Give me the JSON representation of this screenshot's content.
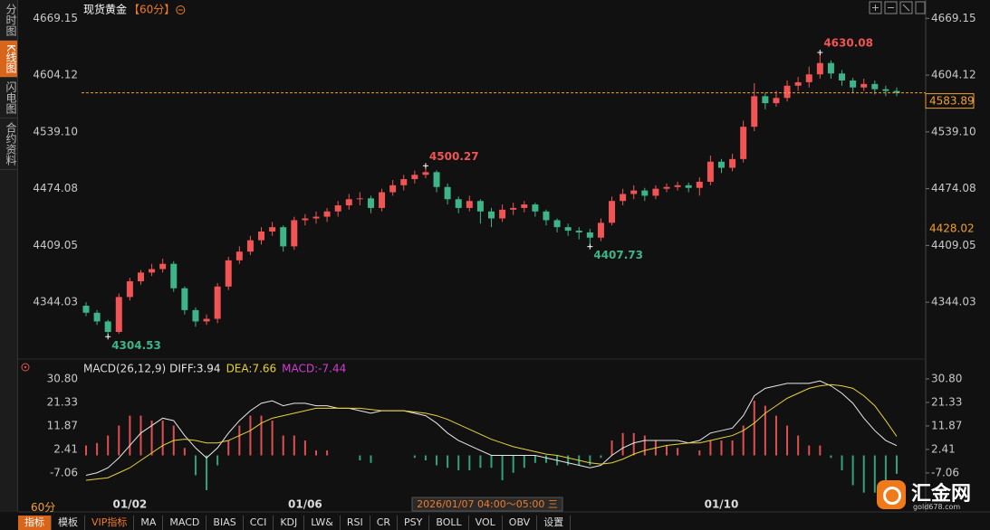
{
  "chart_data": [
    {
      "type": "candlestick",
      "title": "现货黄金",
      "period": "【60分】",
      "categories": [
        null,
        null,
        null,
        null,
        "01/02",
        null,
        null,
        null,
        null,
        null,
        null,
        null,
        null,
        null,
        null,
        null,
        null,
        null,
        null,
        null,
        "01/06",
        null,
        null,
        null,
        null,
        null,
        null,
        null,
        null,
        null,
        null,
        null,
        null,
        null,
        null,
        null,
        null,
        null,
        null,
        null,
        null,
        null,
        null,
        null,
        null,
        null,
        null,
        null,
        null,
        null,
        null,
        null,
        null,
        null,
        null,
        null,
        null,
        null,
        "01/10",
        null,
        null,
        null,
        null,
        null,
        null,
        null,
        null,
        null,
        null,
        null,
        null,
        null,
        null,
        null,
        null
      ],
      "candles": [
        [
          4340,
          4344,
          4328,
          4332
        ],
        [
          4332,
          4335,
          4318,
          4322
        ],
        [
          4322,
          4324,
          4304.53,
          4310
        ],
        [
          4310,
          4354,
          4308,
          4350
        ],
        [
          4350,
          4372,
          4346,
          4368
        ],
        [
          4368,
          4381,
          4364,
          4378
        ],
        [
          4378,
          4388,
          4374,
          4382
        ],
        [
          4382,
          4394,
          4378,
          4388
        ],
        [
          4388,
          4391,
          4356,
          4360
        ],
        [
          4360,
          4362,
          4330,
          4335
        ],
        [
          4335,
          4338,
          4316,
          4322
        ],
        [
          4322,
          4330,
          4318,
          4325
        ],
        [
          4325,
          4366,
          4320,
          4362
        ],
        [
          4362,
          4396,
          4358,
          4392
        ],
        [
          4392,
          4408,
          4388,
          4402
        ],
        [
          4402,
          4420,
          4398,
          4415
        ],
        [
          4415,
          4430,
          4410,
          4425
        ],
        [
          4425,
          4436,
          4420,
          4430
        ],
        [
          4430,
          4432,
          4402,
          4408
        ],
        [
          4408,
          4442,
          4404,
          4438
        ],
        [
          4438,
          4445,
          4432,
          4440
        ],
        [
          4440,
          4448,
          4434,
          4442
        ],
        [
          4442,
          4452,
          4436,
          4448
        ],
        [
          4448,
          4460,
          4442,
          4455
        ],
        [
          4455,
          4468,
          4450,
          4462
        ],
        [
          4462,
          4470,
          4455,
          4463
        ],
        [
          4463,
          4466,
          4446,
          4452
        ],
        [
          4452,
          4474,
          4448,
          4470
        ],
        [
          4470,
          4484,
          4466,
          4478
        ],
        [
          4478,
          4490,
          4472,
          4485
        ],
        [
          4485,
          4495,
          4480,
          4490
        ],
        [
          4490,
          4500.27,
          4486,
          4493
        ],
        [
          4493,
          4495,
          4470,
          4476
        ],
        [
          4476,
          4480,
          4456,
          4462
        ],
        [
          4462,
          4465,
          4446,
          4452
        ],
        [
          4452,
          4466,
          4448,
          4460
        ],
        [
          4460,
          4462,
          4434,
          4448
        ],
        [
          4448,
          4452,
          4430,
          4440
        ],
        [
          4440,
          4456,
          4436,
          4450
        ],
        [
          4450,
          4458,
          4444,
          4452
        ],
        [
          4452,
          4460,
          4447,
          4456
        ],
        [
          4456,
          4458,
          4442,
          4448
        ],
        [
          4448,
          4450,
          4432,
          4438
        ],
        [
          4438,
          4440,
          4424,
          4430
        ],
        [
          4430,
          4434,
          4420,
          4426
        ],
        [
          4426,
          4430,
          4416,
          4424
        ],
        [
          4424,
          4428,
          4407.73,
          4418
        ],
        [
          4418,
          4440,
          4414,
          4435
        ],
        [
          4435,
          4465,
          4432,
          4460
        ],
        [
          4460,
          4474,
          4455,
          4468
        ],
        [
          4468,
          4478,
          4462,
          4472
        ],
        [
          4472,
          4475,
          4460,
          4466
        ],
        [
          4466,
          4478,
          4462,
          4474
        ],
        [
          4474,
          4480,
          4470,
          4476
        ],
        [
          4476,
          4482,
          4472,
          4478
        ],
        [
          4478,
          4481,
          4470,
          4475
        ],
        [
          4475,
          4487,
          4466,
          4482
        ],
        [
          4482,
          4512,
          4478,
          4505
        ],
        [
          4505,
          4508,
          4492,
          4498
        ],
        [
          4498,
          4514,
          4494,
          4508
        ],
        [
          4508,
          4552,
          4504,
          4545
        ],
        [
          4545,
          4595,
          4540,
          4580
        ],
        [
          4580,
          4584,
          4565,
          4572
        ],
        [
          4572,
          4586,
          4568,
          4578
        ],
        [
          4578,
          4598,
          4574,
          4592
        ],
        [
          4592,
          4602,
          4586,
          4596
        ],
        [
          4596,
          4614,
          4590,
          4605
        ],
        [
          4605,
          4630.08,
          4600,
          4618
        ],
        [
          4618,
          4621,
          4600,
          4606
        ],
        [
          4606,
          4610,
          4592,
          4598
        ],
        [
          4598,
          4601,
          4584,
          4590
        ],
        [
          4590,
          4600,
          4586,
          4594
        ],
        [
          4594,
          4598,
          4582,
          4588
        ],
        [
          4588,
          4592,
          4580,
          4586
        ],
        [
          4586,
          4590,
          4580,
          4583.89
        ]
      ],
      "up_color": "#f05454",
      "down_color": "#3eb489",
      "last_price_color": "#f0a030",
      "ylim": [
        4281,
        4685
      ],
      "yticks": [
        4669.15,
        4604.12,
        {
          "value": 4539.1,
          "label": "4539.10"
        },
        4474.08,
        4409.05,
        4344.03
      ],
      "grid": false,
      "marked": [
        {
          "index": 2,
          "at": "low"
        },
        {
          "index": 31,
          "at": "high"
        },
        {
          "index": 46,
          "at": "low"
        },
        {
          "index": 67,
          "at": "high"
        }
      ],
      "reference_level": 4428.02
    },
    {
      "type": "macd",
      "title": "MACD(26,12,9)",
      "ylim": [
        -16.2,
        37.7
      ],
      "yticks": [
        {
          "value": 30.8,
          "label": "30.80"
        },
        21.33,
        11.87,
        2.41,
        -7.06
      ],
      "series": [
        {
          "name": "DIFF:",
          "color": "#e8e8e8",
          "values": [
            -8,
            -7,
            -5,
            -1,
            4,
            9,
            12,
            15,
            14,
            8,
            3,
            -1,
            3,
            9,
            14,
            18,
            21,
            22,
            20,
            21,
            21,
            20,
            20,
            19,
            19,
            18,
            17,
            18,
            18,
            18,
            17,
            16,
            13,
            9,
            6,
            4,
            2,
            0,
            0,
            0,
            0,
            0,
            -1,
            -2,
            -3,
            -4,
            -5,
            -4,
            0,
            3,
            5,
            6,
            6,
            6,
            6,
            5,
            6,
            9,
            10,
            11,
            16,
            24,
            27,
            28,
            29,
            29,
            29,
            30,
            28,
            25,
            21,
            15,
            10,
            6,
            3.94
          ]
        },
        {
          "name": "DEA:",
          "color": "#e6d23c",
          "values": [
            -10,
            -9.5,
            -9,
            -7,
            -5,
            -2,
            1,
            4,
            6,
            6.5,
            6,
            5,
            5,
            6,
            8,
            10,
            13,
            15,
            16,
            17,
            18,
            19,
            19,
            19,
            19,
            19,
            18.5,
            18,
            18,
            18,
            17.5,
            17,
            16,
            14.5,
            12.5,
            10.5,
            8.5,
            6.5,
            5,
            3.5,
            2.5,
            1.5,
            0.5,
            0,
            -1,
            -2,
            -3,
            -3.5,
            -3,
            -1.5,
            0.5,
            2,
            3,
            4,
            4.5,
            5,
            5,
            6,
            7,
            8,
            10,
            13,
            17,
            20,
            23,
            25,
            27,
            28,
            28.5,
            28,
            27,
            24,
            20,
            14,
            7.66
          ]
        },
        {
          "name": "MACD:",
          "color": "#d23cd2",
          "kind": "histogram",
          "up_color": "#e05050",
          "down_color": "#2fa37a",
          "values": [
            4,
            5,
            8,
            12,
            16,
            16,
            14,
            14,
            12,
            3,
            -8,
            -14,
            -4,
            6,
            12,
            16,
            16,
            14,
            8,
            8,
            6,
            2,
            2,
            0,
            0,
            -2,
            -3,
            0,
            0,
            0,
            -1,
            -2,
            -4,
            -5,
            -6,
            -6,
            -5,
            -5,
            -10,
            -7,
            -5,
            -3,
            -3,
            -4,
            -4,
            -4,
            -4,
            -1,
            6,
            9,
            9,
            8,
            6,
            4,
            3,
            0,
            2,
            6,
            6,
            6,
            12,
            22,
            20,
            16,
            12,
            8,
            4,
            4,
            -1,
            -6,
            -12,
            -15,
            -15,
            -12,
            -7.44
          ]
        }
      ]
    }
  ],
  "ui": {
    "sidebar_tabs": [
      "分时图",
      "K线图",
      "闪电图",
      "合约资料"
    ],
    "sidebar_active": 1,
    "period": "60分",
    "crosshair_time": "2026/01/07 04:00～05:00 三",
    "toolbar": [
      "指标",
      "模板",
      "VIP指标",
      "MA",
      "MACD",
      "BIAS",
      "CCI",
      "KDJ",
      "LW&",
      "RSI",
      "CR",
      "PSY",
      "BOLL",
      "VOL",
      "OBV",
      "设置"
    ],
    "toolbar_active": 0,
    "toolbar_highlight": 2,
    "logo": {
      "name": "汇金网",
      "site": "gold678.com"
    }
  }
}
